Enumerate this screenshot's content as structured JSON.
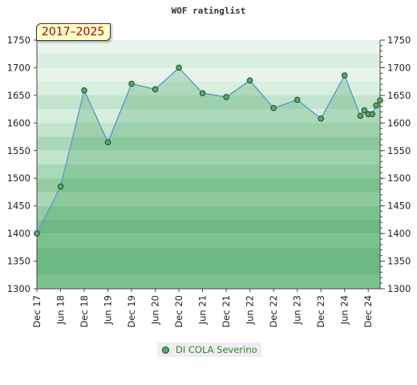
{
  "chart_data": {
    "type": "line",
    "title": "WOF ratinglist",
    "period_label": "2017–2025",
    "ylim": [
      1300,
      1750
    ],
    "y_ticks": [
      1300,
      1350,
      1400,
      1450,
      1500,
      1550,
      1600,
      1650,
      1700,
      1750
    ],
    "x_ticks": [
      "Dec 17",
      "Jun 18",
      "Dec 18",
      "Jun 19",
      "Dec 19",
      "Jun 20",
      "Dec 20",
      "Jun 21",
      "Dec 21",
      "Jun 22",
      "Dec 22",
      "Jun 23",
      "Dec 23",
      "Jun 24",
      "Dec 24"
    ],
    "series": [
      {
        "name": "DI COLA Severino",
        "color": "#55aa66",
        "line_color": "#5b9bd5",
        "points": [
          {
            "x": "Dec 17",
            "y": 1400
          },
          {
            "x": "Jun 18",
            "y": 1485
          },
          {
            "x": "Dec 18",
            "y": 1659
          },
          {
            "x": "Jun 19",
            "y": 1565
          },
          {
            "x": "Dec 19",
            "y": 1671
          },
          {
            "x": "Jun 20",
            "y": 1661
          },
          {
            "x": "Dec 20",
            "y": 1700
          },
          {
            "x": "Jun 21",
            "y": 1654
          },
          {
            "x": "Dec 21",
            "y": 1647
          },
          {
            "x": "Jun 22",
            "y": 1677
          },
          {
            "x": "Dec 22",
            "y": 1627
          },
          {
            "x": "Jun 23",
            "y": 1642
          },
          {
            "x": "Dec 23",
            "y": 1608
          },
          {
            "x": "Jun 24",
            "y": 1686
          },
          {
            "x": "Oct 24",
            "y": 1613
          },
          {
            "x": "Nov 24",
            "y": 1623
          },
          {
            "x": "Dec 24",
            "y": 1616
          },
          {
            "x": "Jan 25",
            "y": 1616
          },
          {
            "x": "Feb 25",
            "y": 1632
          },
          {
            "x": "Mar 25",
            "y": 1641
          }
        ]
      }
    ],
    "band_colors": [
      "#e8f4ec",
      "#d8eedf",
      "#c2e4cc",
      "#a9d8b6",
      "#93cda3",
      "#7fc394"
    ],
    "legend": "bottom",
    "grid": false
  }
}
